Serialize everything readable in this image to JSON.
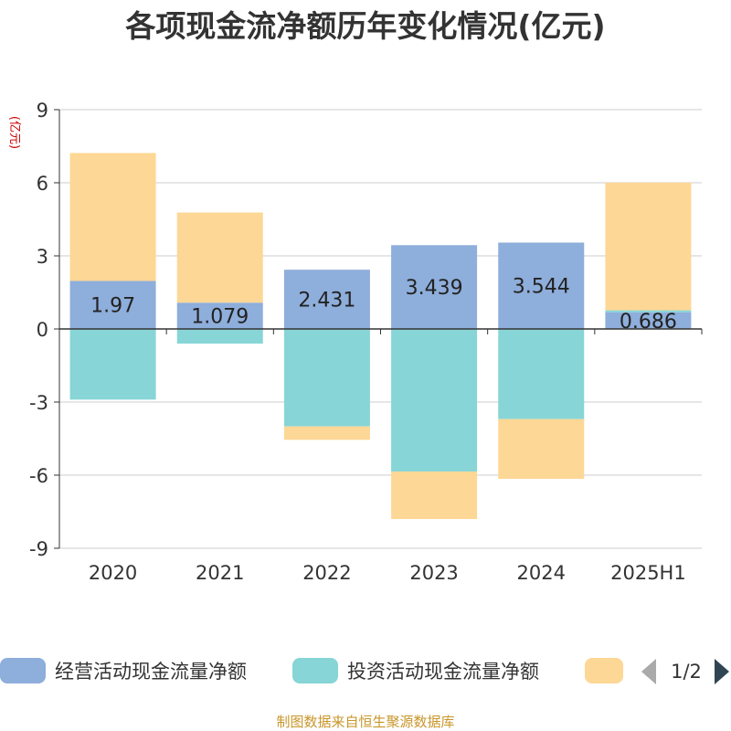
{
  "title": "各项现金流净额历年变化情况(亿元)",
  "source_note": "制图数据来自恒生聚源数据库",
  "legend": {
    "page_indicator": "1/2",
    "prev_icon": "triangle-left-icon",
    "next_icon": "triangle-right-icon"
  },
  "colors": {
    "operating": "#8eaedb",
    "investing": "#87d5d6",
    "financing": "#fdd795",
    "axis": "#333333",
    "grid": "#cccccc",
    "unit": "#cc0000",
    "label": "#222222",
    "pager_disabled": "#aaaaaa",
    "pager_active": "#2f4554"
  },
  "chart_data": {
    "type": "bar",
    "stacked": true,
    "unit_label": "(亿元)",
    "categories": [
      "2020",
      "2021",
      "2022",
      "2023",
      "2024",
      "2025H1"
    ],
    "ylim": [
      -9,
      9
    ],
    "yticks": [
      9,
      6,
      3,
      0,
      -3,
      -6,
      -9
    ],
    "grid": true,
    "legend_position": "bottom",
    "series": [
      {
        "name": "经营活动现金流量净额",
        "color": "#8eaedb",
        "values": [
          1.97,
          1.079,
          2.431,
          3.439,
          3.544,
          0.686
        ],
        "labels": [
          "1.97",
          "1.079",
          "2.431",
          "3.439",
          "3.544",
          "0.686"
        ]
      },
      {
        "name": "投资活动现金流量净额",
        "color": "#87d5d6",
        "values": [
          -2.9,
          -0.6,
          -4.0,
          -5.85,
          -3.7,
          0.08
        ]
      },
      {
        "name": "",
        "color": "#fdd795",
        "values": [
          5.25,
          3.7,
          -0.55,
          -1.95,
          -2.45,
          5.24
        ]
      }
    ]
  }
}
